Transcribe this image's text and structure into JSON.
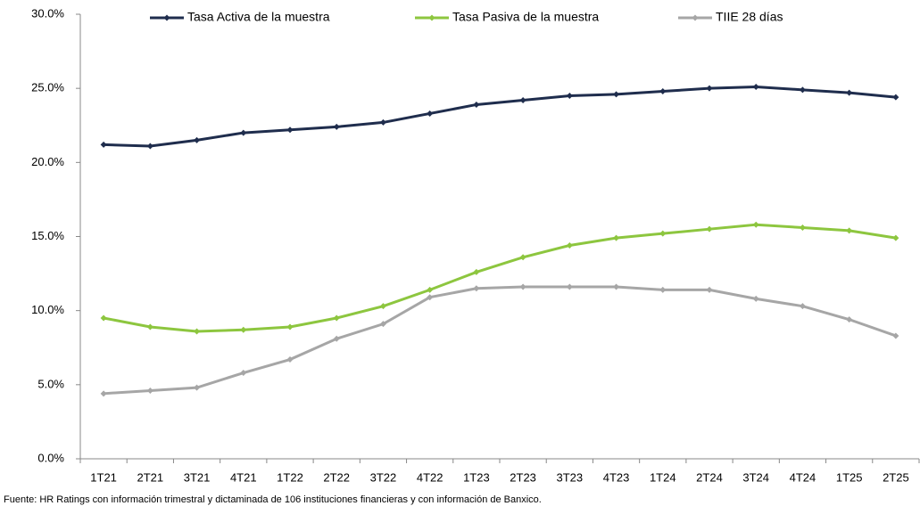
{
  "chart_data": {
    "type": "line",
    "categories": [
      "1T21",
      "2T21",
      "3T21",
      "4T21",
      "1T22",
      "2T22",
      "3T22",
      "4T22",
      "1T23",
      "2T23",
      "3T23",
      "4T23",
      "1T24",
      "2T24",
      "3T24",
      "4T24",
      "1T25",
      "2T25"
    ],
    "series": [
      {
        "name": "Tasa Activa de la muestra",
        "color": "#1f2d4d",
        "values": [
          21.2,
          21.1,
          21.5,
          22.0,
          22.2,
          22.4,
          22.7,
          23.3,
          23.9,
          24.2,
          24.5,
          24.6,
          24.8,
          25.0,
          25.1,
          24.9,
          24.7,
          24.4
        ]
      },
      {
        "name": "Tasa Pasiva de la muestra",
        "color": "#8dc63f",
        "values": [
          9.5,
          8.9,
          8.6,
          8.7,
          8.9,
          9.5,
          10.3,
          11.4,
          12.6,
          13.6,
          14.4,
          14.9,
          15.2,
          15.5,
          15.8,
          15.6,
          15.4,
          14.9
        ]
      },
      {
        "name": "TIIE 28 días",
        "color": "#a6a6a6",
        "values": [
          4.4,
          4.6,
          4.8,
          5.8,
          6.7,
          8.1,
          9.1,
          10.9,
          11.5,
          11.6,
          11.6,
          11.6,
          11.4,
          11.4,
          10.8,
          10.3,
          9.4,
          8.3
        ]
      }
    ],
    "ylim": [
      0,
      30
    ],
    "yticks": [
      {
        "value": 0,
        "label": "0.0%"
      },
      {
        "value": 5,
        "label": "5.0%"
      },
      {
        "value": 10,
        "label": "10.0%"
      },
      {
        "value": 15,
        "label": "15.0%"
      },
      {
        "value": 20,
        "label": "20.0%"
      },
      {
        "value": 25,
        "label": "25.0%"
      },
      {
        "value": 30,
        "label": "30.0%"
      }
    ],
    "legend": "top",
    "source": "Fuente: HR Ratings con información trimestral y dictaminada de 106 instituciones financieras y con información de Banxico."
  }
}
